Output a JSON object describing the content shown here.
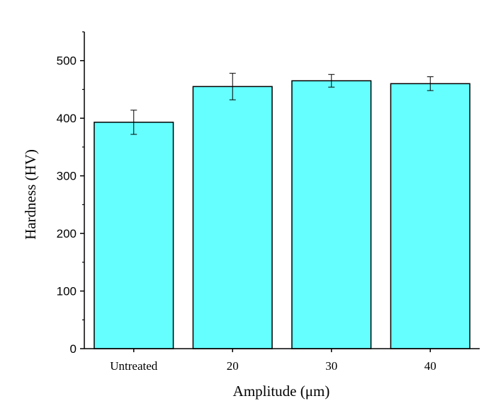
{
  "chart_data": {
    "type": "bar",
    "title": "",
    "xlabel": "Amplitude (μm)",
    "ylabel": "Hardness (HV)",
    "categories": [
      "Untreated",
      "20",
      "30",
      "40"
    ],
    "values": [
      393,
      455,
      465,
      460
    ],
    "errors": [
      21,
      23,
      11,
      12
    ],
    "ylim": [
      0,
      550
    ],
    "yticks": [
      0,
      100,
      200,
      300,
      400,
      500
    ],
    "bar_color": "#66ffff",
    "edge_color": "#000000",
    "grid": false,
    "legend": "none"
  }
}
